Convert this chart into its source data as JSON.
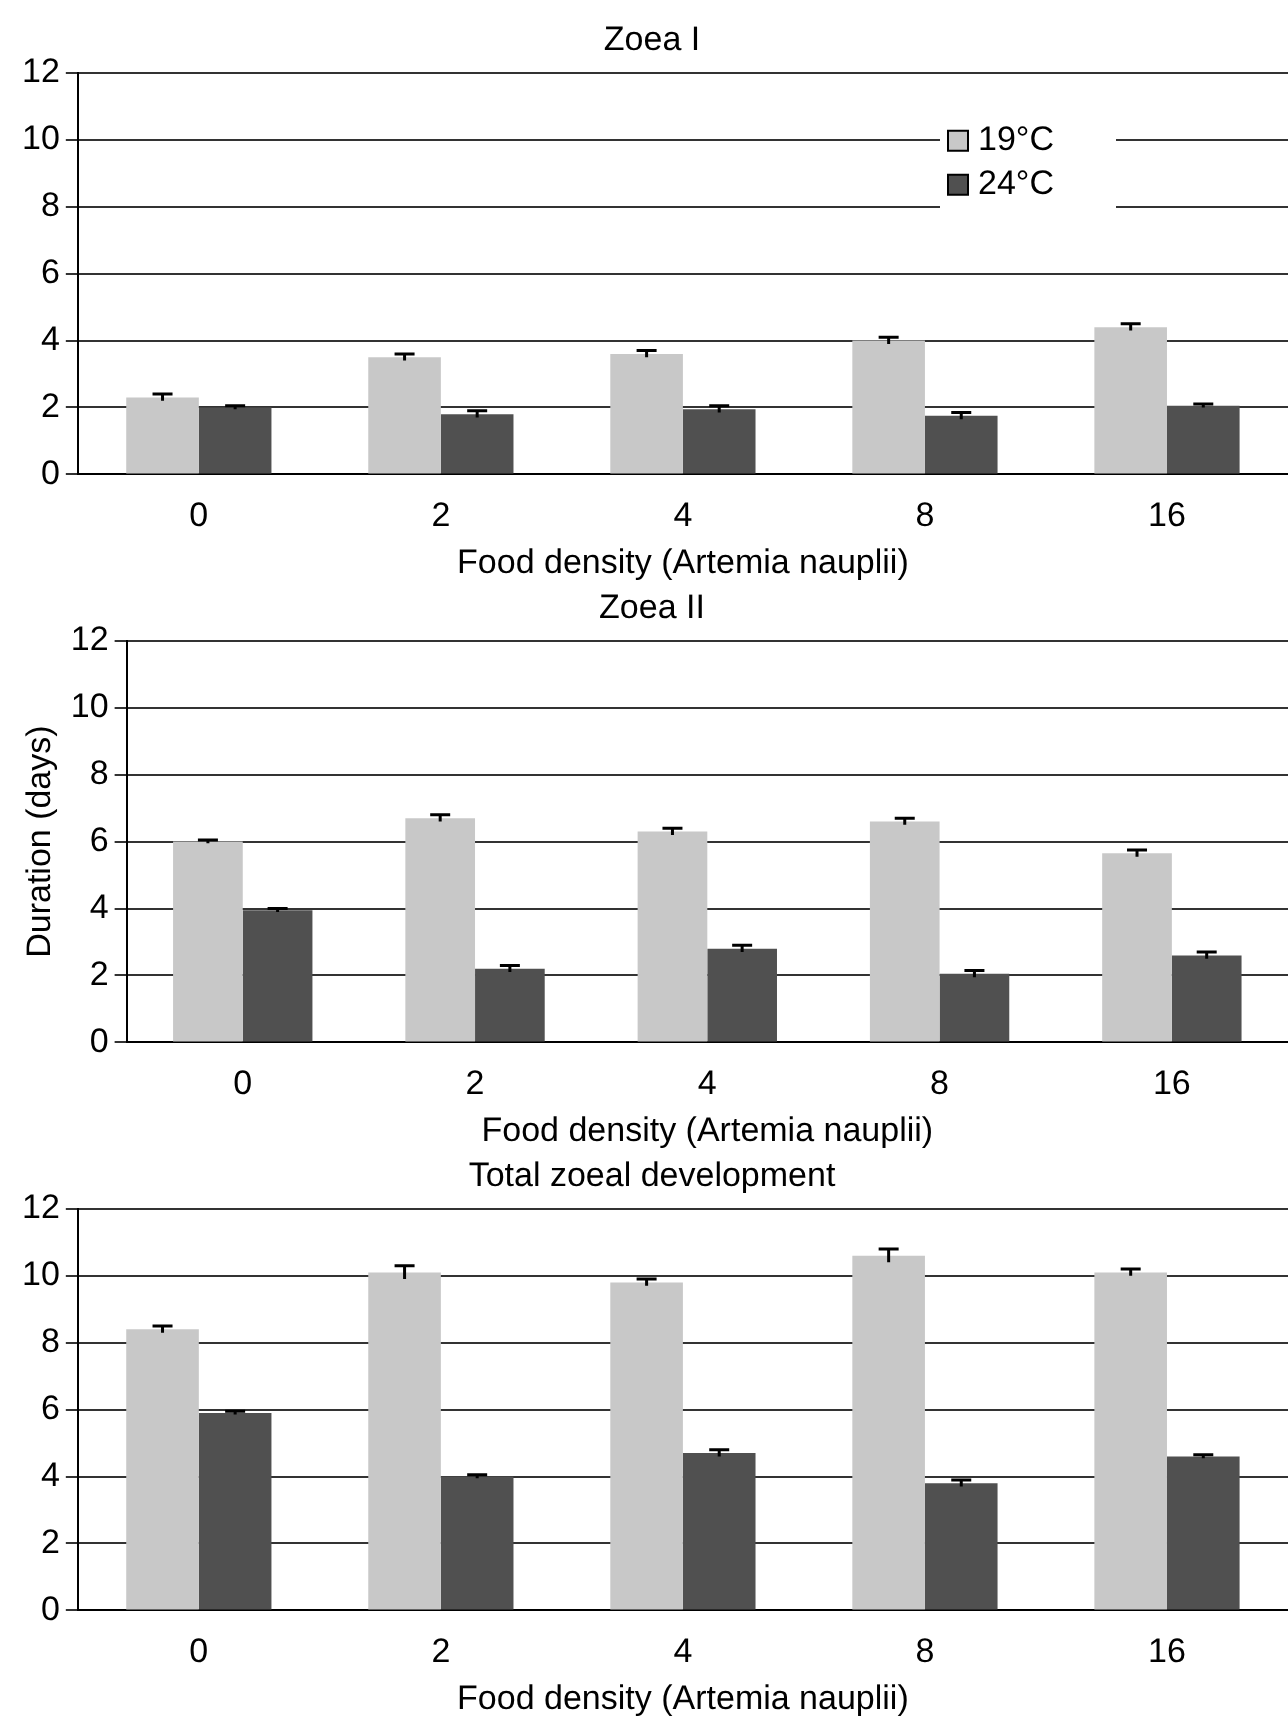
{
  "chart_data": [
    {
      "type": "bar",
      "title": "Zoea I",
      "xlabel": "Food density (Artemia nauplii)",
      "categories": [
        "0",
        "2",
        "4",
        "8",
        "16"
      ],
      "series": [
        {
          "name": "19°C",
          "color": "#c8c8c8",
          "values": [
            2.3,
            3.5,
            3.6,
            4.0,
            4.4
          ],
          "errors": [
            0.1,
            0.1,
            0.1,
            0.1,
            0.1
          ]
        },
        {
          "name": "24°C",
          "color": "#505050",
          "values": [
            2.0,
            1.8,
            1.95,
            1.75,
            2.05
          ],
          "errors": [
            0.05,
            0.1,
            0.1,
            0.1,
            0.05
          ]
        }
      ],
      "ylim": [
        0,
        12
      ],
      "yticks": [
        0,
        2,
        4,
        6,
        8,
        10,
        12
      ],
      "grid": "y",
      "legend": "top right"
    },
    {
      "type": "bar",
      "title": "Zoea II",
      "xlabel": "Food density (Artemia nauplii)",
      "ylabel": "Duration (days)",
      "categories": [
        "0",
        "2",
        "4",
        "8",
        "16"
      ],
      "series": [
        {
          "color": "#c8c8c8",
          "values": [
            6.0,
            6.7,
            6.3,
            6.6,
            5.65
          ],
          "errors": [
            0.05,
            0.1,
            0.1,
            0.1,
            0.1
          ]
        },
        {
          "color": "#505050",
          "values": [
            3.95,
            2.2,
            2.8,
            2.05,
            2.6
          ],
          "errors": [
            0.05,
            0.1,
            0.1,
            0.1,
            0.1
          ]
        }
      ],
      "ylim": [
        0,
        12
      ],
      "yticks": [
        0,
        2,
        4,
        6,
        8,
        10,
        12
      ],
      "grid": "y"
    },
    {
      "type": "bar",
      "title": "Total zoeal development",
      "xlabel": "Food density (Artemia nauplii)",
      "categories": [
        "0",
        "2",
        "4",
        "8",
        "16"
      ],
      "series": [
        {
          "color": "#c8c8c8",
          "values": [
            8.4,
            10.1,
            9.8,
            10.6,
            10.1
          ],
          "errors": [
            0.1,
            0.2,
            0.1,
            0.2,
            0.1
          ]
        },
        {
          "color": "#505050",
          "values": [
            5.9,
            4.0,
            4.7,
            3.8,
            4.6
          ],
          "errors": [
            0.05,
            0.05,
            0.1,
            0.1,
            0.05
          ]
        }
      ],
      "ylim": [
        0,
        12
      ],
      "yticks": [
        0,
        2,
        4,
        6,
        8,
        10,
        12
      ],
      "grid": "y"
    }
  ]
}
